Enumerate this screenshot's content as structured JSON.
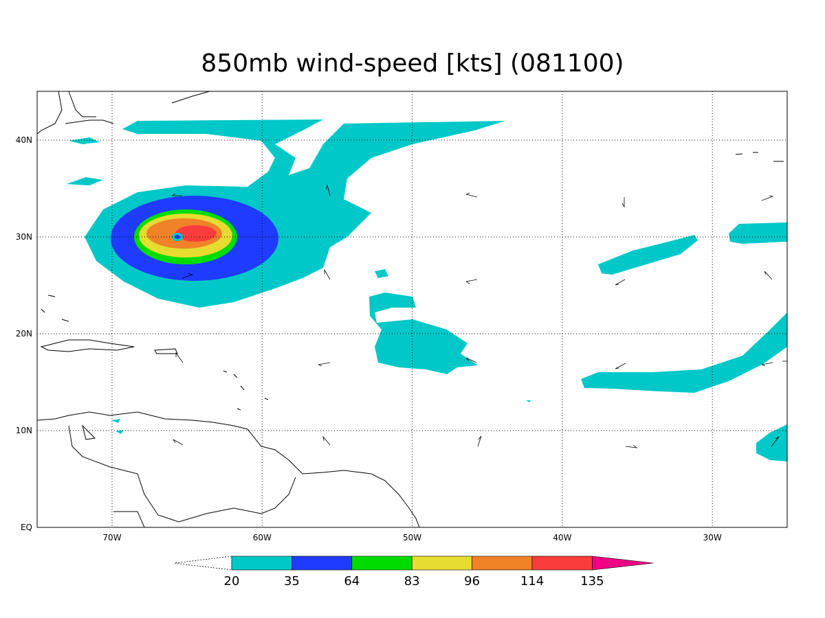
{
  "title": "850mb wind-speed [kts] (081100)",
  "lon_labels": [
    "70W",
    "60W",
    "50W",
    "40W",
    "30W"
  ],
  "lat_labels": [
    "EQ",
    "10N",
    "20N",
    "30N",
    "40N"
  ],
  "colorbar": {
    "levels": [
      20,
      35,
      64,
      83,
      96,
      114,
      135
    ],
    "colors": [
      "#00c8c8",
      "#1e3cff",
      "#00dc00",
      "#e6dc32",
      "#f08228",
      "#fa3c3c",
      "#f00082"
    ]
  }
}
